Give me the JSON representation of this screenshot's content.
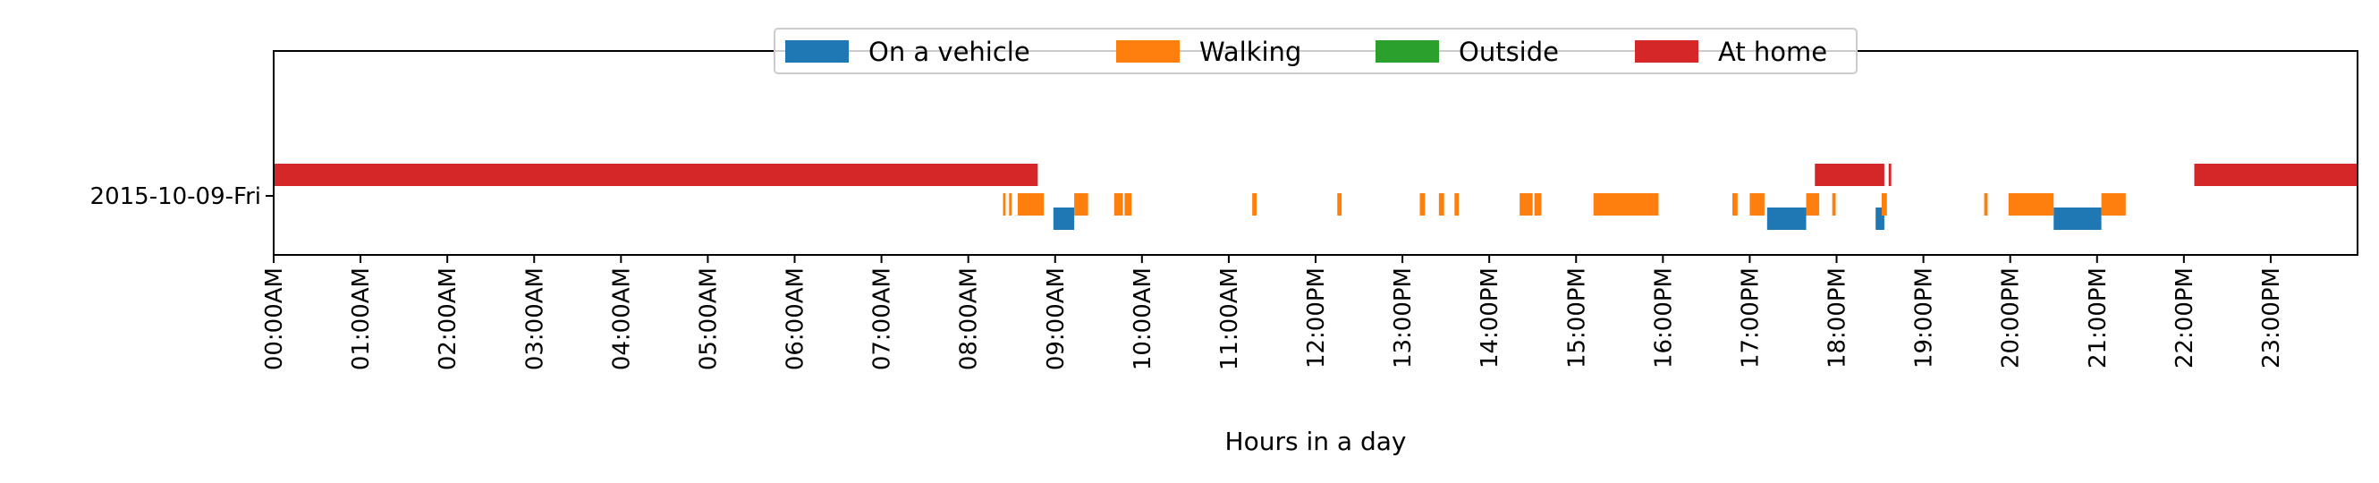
{
  "chart_data": {
    "type": "timeline",
    "title": "",
    "xlabel": "Hours in a day",
    "ylabel": "",
    "xlim": [
      0,
      24
    ],
    "x_unit": "hour of day",
    "grid": false,
    "legend_placement": "top-center",
    "rows": [
      "2015-10-09-Fri"
    ],
    "x_tick_labels": [
      "00:00AM",
      "01:00AM",
      "02:00AM",
      "03:00AM",
      "04:00AM",
      "05:00AM",
      "06:00AM",
      "07:00AM",
      "08:00AM",
      "09:00AM",
      "10:00AM",
      "11:00AM",
      "12:00PM",
      "13:00PM",
      "14:00PM",
      "15:00PM",
      "16:00PM",
      "17:00PM",
      "18:00PM",
      "19:00PM",
      "20:00PM",
      "21:00PM",
      "22:00PM",
      "23:00PM"
    ],
    "series": [
      {
        "name": "On a vehicle",
        "color": "#1f77b4",
        "intervals": [
          [
            8.98,
            9.22
          ],
          [
            17.2,
            17.65
          ],
          [
            18.45,
            18.55
          ],
          [
            20.5,
            21.05
          ]
        ]
      },
      {
        "name": "Walking",
        "color": "#ff7f0e",
        "intervals": [
          [
            8.4,
            8.43
          ],
          [
            8.47,
            8.5
          ],
          [
            8.57,
            8.87
          ],
          [
            9.22,
            9.38
          ],
          [
            9.68,
            9.78
          ],
          [
            9.8,
            9.88
          ],
          [
            11.27,
            11.32
          ],
          [
            12.25,
            12.3
          ],
          [
            13.2,
            13.26
          ],
          [
            13.42,
            13.48
          ],
          [
            13.6,
            13.65
          ],
          [
            14.35,
            14.5
          ],
          [
            14.52,
            14.6
          ],
          [
            15.2,
            15.95
          ],
          [
            16.8,
            16.86
          ],
          [
            17.0,
            17.17
          ],
          [
            17.65,
            17.8
          ],
          [
            17.95,
            17.99
          ],
          [
            18.52,
            18.58
          ],
          [
            19.7,
            19.74
          ],
          [
            19.98,
            20.5
          ],
          [
            21.05,
            21.33
          ]
        ]
      },
      {
        "name": "Outside",
        "color": "#2ca02c",
        "intervals": []
      },
      {
        "name": "At home",
        "color": "#d62728",
        "intervals": [
          [
            0.0,
            8.8
          ],
          [
            17.75,
            18.55
          ],
          [
            18.6,
            18.63
          ],
          [
            22.12,
            24.0
          ]
        ]
      }
    ]
  }
}
